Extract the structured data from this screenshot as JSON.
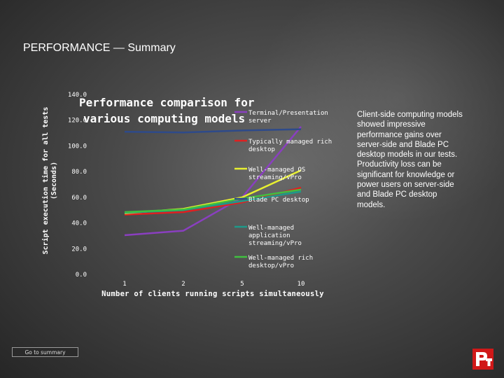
{
  "slide": {
    "title": "PERFORMANCE — Summary",
    "note": "Client-side computing models showed impressive performance gains over server-side and Blade PC desktop models in our tests. Productivity loss can be significant for knowledge or power users on server-side and Blade PC desktop models.",
    "goto_button": "Go to summary"
  },
  "chart_data": {
    "type": "line",
    "title": "Performance comparison for various computing models",
    "xlabel": "Number of clients running scripts simultaneously",
    "ylabel": "Script execution time for all tests (Seconds)",
    "categories": [
      "1",
      "2",
      "5",
      "10"
    ],
    "ylim": [
      0,
      140
    ],
    "yticks": [
      "0.0",
      "20.0",
      "40.0",
      "60.0",
      "80.0",
      "100.0",
      "120.0",
      "140.0"
    ],
    "legend_position": "right",
    "series": [
      {
        "name": "Terminal/Presentation server",
        "color": "#8a3fc0",
        "values": [
          30.5,
          34.0,
          60.0,
          115.0
        ]
      },
      {
        "name": "Typically managed rich desktop",
        "color": "#e02020",
        "values": [
          46.5,
          48.5,
          56.0,
          67.5
        ]
      },
      {
        "name": "Well-managed OS streaming/vPro",
        "color": "#e8f030",
        "values": [
          47.5,
          51.0,
          60.0,
          81.0
        ]
      },
      {
        "name": "Blade PC desktop",
        "color": "#2e4a8a",
        "values": [
          111.0,
          110.5,
          112.0,
          113.0
        ]
      },
      {
        "name": "Well-managed application streaming/vPro",
        "color": "#1e9a8a",
        "values": [
          48.0,
          50.0,
          57.0,
          64.5
        ]
      },
      {
        "name": "Well-managed rich desktop/vPro",
        "color": "#40c040",
        "values": [
          48.5,
          50.5,
          59.0,
          66.0
        ]
      }
    ]
  }
}
